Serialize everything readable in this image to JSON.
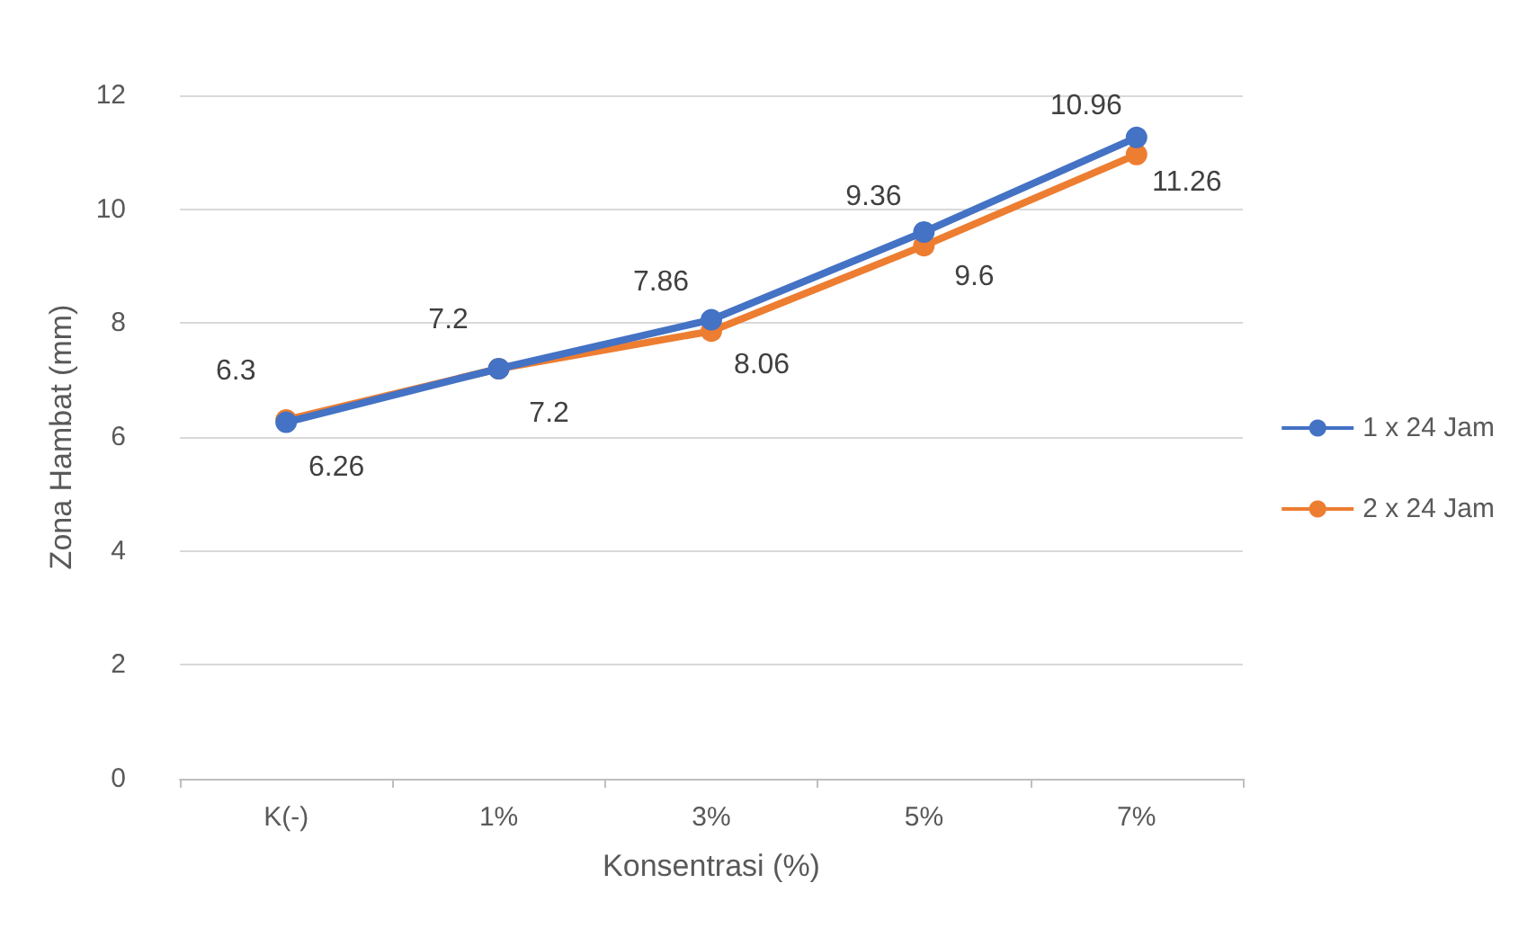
{
  "chart_data": {
    "type": "line",
    "xlabel": "Konsentrasi (%)",
    "ylabel": "Zona Hambat (mm)",
    "categories": [
      "K(-)",
      "1%",
      "3%",
      "5%",
      "7%"
    ],
    "series": [
      {
        "name": "1 x 24 Jam",
        "color": "#4472c4",
        "values": [
          6.26,
          7.2,
          8.06,
          9.6,
          11.26
        ]
      },
      {
        "name": "2 x 24 Jam",
        "color": "#ed7d31",
        "values": [
          6.3,
          7.2,
          7.86,
          9.36,
          10.96
        ]
      }
    ],
    "ylim": [
      0,
      12
    ],
    "yticks": [
      0,
      2,
      4,
      6,
      8,
      10,
      12
    ],
    "grid": "y",
    "legend": "right",
    "marker": "circle",
    "data_labels": true
  }
}
